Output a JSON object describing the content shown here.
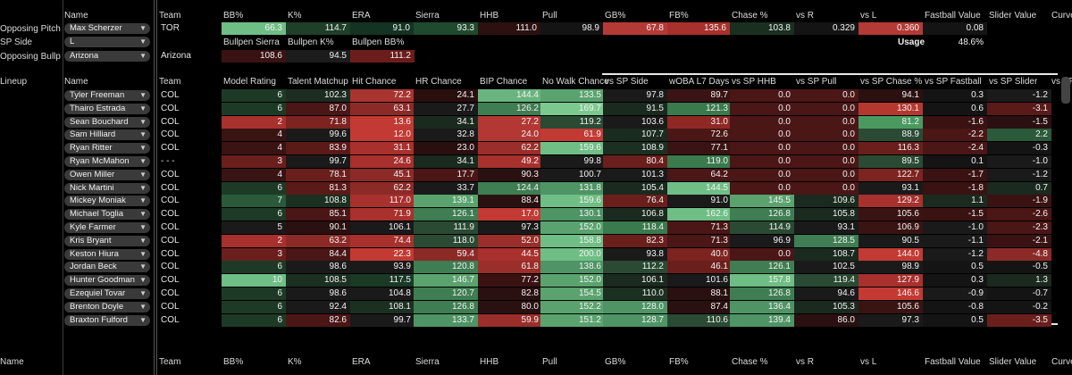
{
  "pitcher_headers": [
    "Team",
    "BB%",
    "K%",
    "ERA",
    "Sierra",
    "HHB",
    "Pull",
    "GB%",
    "FB%",
    "Chase %",
    "vs R",
    "vs L",
    "Fastball Value",
    "Slider Value",
    "Curve"
  ],
  "name_header": "Name",
  "opposing_pitcher": {
    "label": "Opposing Pitcher",
    "name": "Max Scherzer",
    "team": "TOR",
    "values": [
      "66.3",
      "114.7",
      "91.0",
      "93.3",
      "111.0",
      "98.9",
      "67.8",
      "135.6",
      "103.8",
      "0.329",
      "0.360",
      "0.08",
      ""
    ],
    "colors": [
      "#6fbe85",
      "#1f3f28",
      "#143322",
      "#1f4a2e",
      "#2d1010",
      "#141414",
      "#b43a36",
      "#a8302d",
      "#1a2f20",
      "#141414",
      "#b33a36",
      "#141414",
      ""
    ]
  },
  "sp_side": {
    "label": "SP Side",
    "value": "L"
  },
  "bullpen": {
    "label": "Opposing Bullpen",
    "name": "Arizona",
    "team": "Arizona",
    "headers": [
      "Bullpen Sierra",
      "Bullpen K%",
      "Bullpen BB%"
    ],
    "values": [
      "108.6",
      "94.5",
      "111.2"
    ],
    "colors": [
      "#3a1212",
      "#1c1c1c",
      "#6b1d1b"
    ]
  },
  "usage": {
    "label": "Usage",
    "value": "48.6%"
  },
  "lineup_label": "Lineup",
  "lineup_headers": [
    "Team",
    "Model Rating",
    "Talent Matchup",
    "Hit Chance",
    "HR Chance",
    "BIP Chance",
    "No Walk Chance",
    "vs SP Side",
    "wOBA L7 Days",
    "vs SP HHB",
    "vs SP Pull",
    "vs SP Chase %",
    "vs SP Fastball",
    "vs SP Slider",
    "vs SP Curve"
  ],
  "lineup": [
    {
      "name": "Tyler Freeman",
      "team": "COL",
      "vals": [
        "6",
        "102.3",
        "72.2",
        "24.1",
        "144.4",
        "133.5",
        "97.8",
        "89.7",
        "0.0",
        "0.0",
        "94.1",
        "0.3",
        "-1.2"
      ],
      "c": [
        "#1d3a26",
        "#1c2c20",
        "#a8342f",
        "#2a0f0f",
        "#6ab47f",
        "#5aa36f",
        "#1a1a1a",
        "#3a1414",
        "#4a1616",
        "#4a1616",
        "#2b1010",
        "#141414",
        "#1a1a1a"
      ]
    },
    {
      "name": "Thairo Estrada",
      "team": "COL",
      "vals": [
        "6",
        "87.0",
        "63.1",
        "27.7",
        "126.2",
        "169.7",
        "91.5",
        "121.3",
        "0.0",
        "0.0",
        "130.1",
        "0.6",
        "-3.1"
      ],
      "c": [
        "#1d3a26",
        "#4a1616",
        "#8c2a27",
        "#1a1a1a",
        "#3f7d52",
        "#7cc990",
        "#1a2a1e",
        "#3a7a4d",
        "#4a1616",
        "#4a1616",
        "#b5382f",
        "#141414",
        "#5a1a18"
      ]
    },
    {
      "name": "Sean Bouchard",
      "team": "COL",
      "vals": [
        "2",
        "71.8",
        "13.6",
        "34.1",
        "27.2",
        "119.2",
        "103.6",
        "31.0",
        "0.0",
        "0.0",
        "81.2",
        "-1.6",
        "-1.5"
      ],
      "c": [
        "#a8302d",
        "#7d2320",
        "#c23a33",
        "#1b2a1e",
        "#b33733",
        "#2a4a33",
        "#1a1a1a",
        "#8f2824",
        "#4a1616",
        "#4a1616",
        "#4a9a5f",
        "#3a1212",
        "#2a1010"
      ]
    },
    {
      "name": "Sam Hilliard",
      "team": "COL",
      "vals": [
        "4",
        "99.6",
        "12.0",
        "32.8",
        "24.0",
        "61.9",
        "107.7",
        "72.6",
        "0.0",
        "0.0",
        "88.9",
        "-2.2",
        "2.2"
      ],
      "c": [
        "#3a1313",
        "#1a1a1a",
        "#c23a33",
        "#1a1a1a",
        "#b33733",
        "#c23a33",
        "#1a2c1f",
        "#4a1616",
        "#4a1616",
        "#4a1616",
        "#2a4a33",
        "#4a1616",
        "#2a5a3a"
      ]
    },
    {
      "name": "Ryan Ritter",
      "team": "COL",
      "vals": [
        "4",
        "83.9",
        "31.1",
        "23.0",
        "62.2",
        "159.6",
        "108.9",
        "77.1",
        "0.0",
        "0.0",
        "116.3",
        "-2.4",
        "-0.3"
      ],
      "c": [
        "#3a1313",
        "#5a1a18",
        "#a8302d",
        "#2a0f0f",
        "#9a2e2a",
        "#6fbe85",
        "#1c3022",
        "#3a1414",
        "#4a1616",
        "#4a1616",
        "#6a1f1c",
        "#4a1616",
        "#141414"
      ]
    },
    {
      "name": "Ryan McMahon",
      "team": "- - -",
      "vals": [
        "3",
        "99.7",
        "24.6",
        "34.1",
        "49.2",
        "99.8",
        "80.4",
        "119.0",
        "0.0",
        "0.0",
        "89.5",
        "0.1",
        "-1.0"
      ],
      "c": [
        "#6a1f1c",
        "#1a1a1a",
        "#a8302d",
        "#1a2a1e",
        "#a8302d",
        "#1a1a1a",
        "#6a1f1c",
        "#3a7a4d",
        "#4a1616",
        "#4a1616",
        "#2a4a33",
        "#141414",
        "#1a1a1a"
      ]
    },
    {
      "name": "Owen Miller",
      "team": "COL",
      "vals": [
        "4",
        "78.1",
        "45.1",
        "17.7",
        "90.3",
        "100.7",
        "101.3",
        "64.2",
        "0.0",
        "0.0",
        "122.7",
        "-1.7",
        "-1.2"
      ],
      "c": [
        "#3a1313",
        "#6a1f1c",
        "#8c2a27",
        "#4a1616",
        "#2a1010",
        "#1a1a1a",
        "#1a1a1a",
        "#4a1616",
        "#4a1616",
        "#4a1616",
        "#7d2320",
        "#3a1212",
        "#1a1a1a"
      ]
    },
    {
      "name": "Nick Martini",
      "team": "COL",
      "vals": [
        "6",
        "81.3",
        "62.2",
        "33.7",
        "124.4",
        "131.8",
        "105.4",
        "144.5",
        "0.0",
        "0.0",
        "93.1",
        "-1.8",
        "0.7"
      ],
      "c": [
        "#1d3a26",
        "#5a1a18",
        "#8c2a27",
        "#1a1a1a",
        "#3f7d52",
        "#4e9465",
        "#1a2a1e",
        "#6fbe85",
        "#4a1616",
        "#4a1616",
        "#1a1a1a",
        "#3a1212",
        "#1a2a1e"
      ]
    },
    {
      "name": "Mickey Moniak",
      "team": "COL",
      "vals": [
        "7",
        "108.8",
        "117.0",
        "139.1",
        "88.4",
        "159.6",
        "76.4",
        "91.0",
        "145.5",
        "109.6",
        "129.2",
        "1.1",
        "-1.9"
      ],
      "c": [
        "#2a5a3a",
        "#1c3022",
        "#a8302d",
        "#5aa36f",
        "#2a1010",
        "#6fbe85",
        "#6a1f1c",
        "#1a1a1a",
        "#5aa36f",
        "#1b2a1e",
        "#a8302d",
        "#1a2a1e",
        "#3a1212"
      ]
    },
    {
      "name": "Michael Toglia",
      "team": "COL",
      "vals": [
        "6",
        "85.1",
        "71.9",
        "126.1",
        "17.0",
        "130.1",
        "106.8",
        "162.6",
        "126.8",
        "105.8",
        "105.6",
        "-1.5",
        "-2.6"
      ],
      "c": [
        "#1d3a26",
        "#4a1616",
        "#a8302d",
        "#3f7d52",
        "#c23a33",
        "#4e9465",
        "#1a2a1e",
        "#6fbe85",
        "#3f7d52",
        "#1a2a1e",
        "#3a1313",
        "#3a1212",
        "#4a1616"
      ]
    },
    {
      "name": "Kyle Farmer",
      "team": "COL",
      "vals": [
        "5",
        "90.1",
        "106.1",
        "111.9",
        "97.3",
        "152.0",
        "118.4",
        "71.3",
        "114.9",
        "93.1",
        "106.9",
        "-1.0",
        "-2.3"
      ],
      "c": [
        "#1a1a1a",
        "#2a1010",
        "#1a1a1a",
        "#2a4a33",
        "#1a1a1a",
        "#5aa36f",
        "#3a7a4d",
        "#4a1616",
        "#2a4a33",
        "#1a1a1a",
        "#3a1313",
        "#1a1a1a",
        "#4a1616"
      ]
    },
    {
      "name": "Kris Bryant",
      "team": "COL",
      "vals": [
        "2",
        "63.2",
        "74.4",
        "118.0",
        "52.0",
        "158.8",
        "82.3",
        "71.3",
        "96.9",
        "128.5",
        "90.5",
        "-1.1",
        "-2.1"
      ],
      "c": [
        "#a8302d",
        "#8c2a27",
        "#a8302d",
        "#2a4a33",
        "#9a2e2a",
        "#6fbe85",
        "#6a1f1c",
        "#4a1616",
        "#1a1a1a",
        "#3f7d52",
        "#1a1a1a",
        "#1a1a1a",
        "#3a1212"
      ]
    },
    {
      "name": "Keston Hiura",
      "team": "COL",
      "vals": [
        "3",
        "84.4",
        "22.3",
        "59.4",
        "44.5",
        "200.0",
        "93.8",
        "40.0",
        "0.0",
        "108.7",
        "144.0",
        "-1.2",
        "-4.8"
      ],
      "c": [
        "#6a1f1c",
        "#4a1616",
        "#c23a33",
        "#8c2a27",
        "#a8302d",
        "#6fbe85",
        "#1a1a1a",
        "#7d2320",
        "#4a1616",
        "#1a2a1e",
        "#c23a33",
        "#1a1a1a",
        "#8c2a27"
      ]
    },
    {
      "name": "Jordan Beck",
      "team": "COL",
      "vals": [
        "6",
        "98.6",
        "93.9",
        "120.8",
        "61.8",
        "138.6",
        "112.2",
        "46.1",
        "126.1",
        "102.5",
        "98.9",
        "0.5",
        "-0.5"
      ],
      "c": [
        "#1d3a26",
        "#1a1a1a",
        "#1a1a1a",
        "#3f7d52",
        "#9a2e2a",
        "#4e9465",
        "#2a4a33",
        "#6a1f1c",
        "#3f7d52",
        "#1a1a1a",
        "#1a1a1a",
        "#141414",
        "#141414"
      ]
    },
    {
      "name": "Hunter Goodman",
      "team": "COL",
      "vals": [
        "10",
        "108.5",
        "117.5",
        "146.7",
        "77.2",
        "152.0",
        "106.1",
        "101.6",
        "157.8",
        "119.4",
        "127.9",
        "0.3",
        "1.3"
      ],
      "c": [
        "#6fbe85",
        "#1c3022",
        "#1a3a26",
        "#5aa36f",
        "#3a1212",
        "#5aa36f",
        "#1a2a1e",
        "#1a1a1a",
        "#6fbe85",
        "#2a4a33",
        "#a8302d",
        "#141414",
        "#1a2a1e"
      ]
    },
    {
      "name": "Ezequiel Tovar",
      "team": "COL",
      "vals": [
        "6",
        "98.6",
        "104.8",
        "120.7",
        "82.8",
        "154.5",
        "110.0",
        "88.1",
        "126.8",
        "94.6",
        "146.6",
        "-0.9",
        "-0.7"
      ],
      "c": [
        "#1d3a26",
        "#1a1a1a",
        "#1a1a1a",
        "#3f7d52",
        "#2a1010",
        "#5aa36f",
        "#1c3022",
        "#2a1010",
        "#3f7d52",
        "#1a1a1a",
        "#c23a33",
        "#1a1a1a",
        "#141414"
      ]
    },
    {
      "name": "Brenton Doyle",
      "team": "COL",
      "vals": [
        "6",
        "92.4",
        "108.1",
        "126.8",
        "80.0",
        "152.2",
        "128.0",
        "87.4",
        "136.4",
        "105.3",
        "105.6",
        "-0.8",
        "-0.2"
      ],
      "c": [
        "#1d3a26",
        "#1a1a1a",
        "#1c3022",
        "#3f7d52",
        "#2a1010",
        "#5aa36f",
        "#4e9465",
        "#2a1010",
        "#4e9465",
        "#1a2a1e",
        "#3a1313",
        "#141414",
        "#141414"
      ]
    },
    {
      "name": "Braxton Fulford",
      "team": "COL",
      "vals": [
        "6",
        "82.6",
        "99.7",
        "133.7",
        "59.9",
        "151.2",
        "128.7",
        "110.6",
        "139.4",
        "86.0",
        "97.3",
        "0.5",
        "-3.5"
      ],
      "c": [
        "#1d3a26",
        "#4a1616",
        "#1a1a1a",
        "#4e9465",
        "#9a2e2a",
        "#5aa36f",
        "#4e9465",
        "#2a4a33",
        "#4e9465",
        "#2a1010",
        "#1a1a1a",
        "#141414",
        "#6a1f1c"
      ]
    }
  ],
  "bottom_headers": [
    "Team",
    "BB%",
    "K%",
    "ERA",
    "Sierra",
    "HHB",
    "Pull",
    "GB%",
    "FB%",
    "Chase %",
    "vs R",
    "vs L",
    "Fastball Value",
    "Slider Value",
    "Curve"
  ]
}
